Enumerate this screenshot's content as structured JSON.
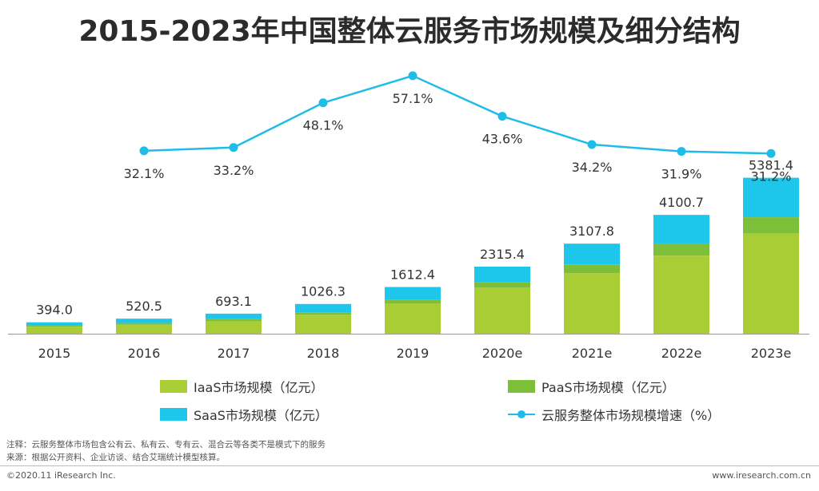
{
  "title": "2015-2023年中国整体云服务市场规模及细分结构",
  "colors": {
    "iaas": "#a9cd35",
    "paas": "#7ebf3a",
    "saas": "#1fc6ec",
    "line": "#1fbce9",
    "axis": "#999999"
  },
  "legend": {
    "iaas": "IaaS市场规模（亿元）",
    "paas": "PaaS市场规模（亿元）",
    "saas": "SaaS市场规模（亿元）",
    "growth": "云服务整体市场规模增速（%）"
  },
  "notes": {
    "note": "注释：云服务整体市场包含公有云、私有云、专有云、混合云等各类不是模式下的服务",
    "source": "来源：根据公开资料、企业访谈、结合艾瑞统计模型核算。"
  },
  "footer": {
    "copyright": "©2020.11 iResearch Inc.",
    "website": "www.iresearch.com.cn"
  },
  "chart_data": {
    "type": "bar",
    "stacked": true,
    "categories": [
      "2015",
      "2016",
      "2017",
      "2018",
      "2019",
      "2020e",
      "2021e",
      "2022e",
      "2023e"
    ],
    "totals": [
      394.0,
      520.5,
      693.1,
      1026.3,
      1612.4,
      2315.4,
      3107.8,
      4100.7,
      5381.4
    ],
    "total_labels": [
      "394.0",
      "520.5",
      "693.1",
      "1026.3",
      "1612.4",
      "2315.4",
      "3107.8",
      "4100.7",
      "5381.4"
    ],
    "series": [
      {
        "name": "IaaS市场规模（亿元）",
        "key": "iaas",
        "values": [
          240,
          310,
          430,
          655,
          1045,
          1590,
          2090,
          2695,
          3460
        ]
      },
      {
        "name": "PaaS市场规模（亿元）",
        "key": "paas",
        "values": [
          50,
          60,
          70,
          80,
          120,
          180,
          300,
          420,
          560
        ]
      },
      {
        "name": "SaaS市场规模（亿元）",
        "key": "saas",
        "values": [
          104,
          150.5,
          193.1,
          291.3,
          447.4,
          545.4,
          717.8,
          985.7,
          1361.4
        ]
      }
    ],
    "line": {
      "name": "云服务整体市场规模增速（%）",
      "values": [
        32.1,
        33.2,
        48.1,
        57.1,
        43.6,
        34.2,
        31.9,
        31.2
      ],
      "labels": [
        "32.1%",
        "33.2%",
        "48.1%",
        "57.1%",
        "43.6%",
        "34.2%",
        "31.9%",
        "31.2%"
      ],
      "categories": [
        "2016",
        "2017",
        "2018",
        "2019",
        "2020e",
        "2021e",
        "2022e",
        "2023e"
      ]
    },
    "ylim": [
      0,
      6000
    ],
    "legend_position": "bottom"
  }
}
